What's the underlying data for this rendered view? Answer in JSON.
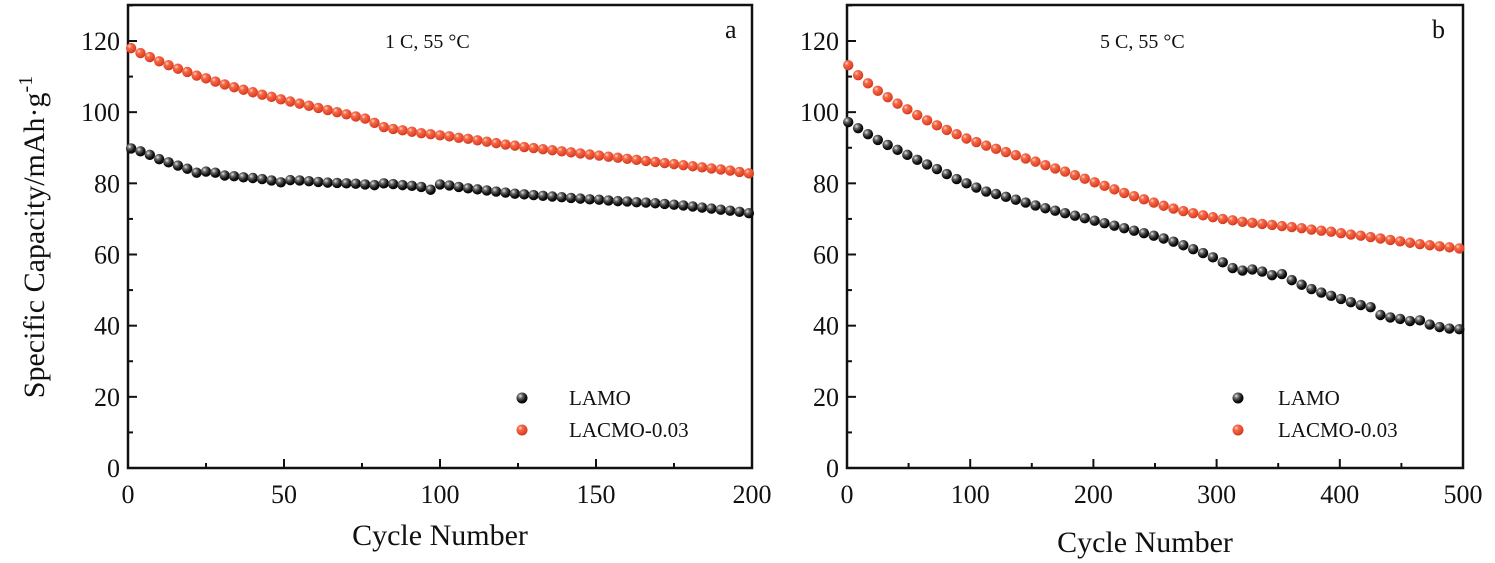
{
  "chart_data": [
    {
      "type": "scatter",
      "panel_label": "a",
      "annotation": "1 C, 55 °C",
      "title": "",
      "xlabel": "Cycle Number",
      "ylabel": "Specific Capacity/mAh·g⁻¹",
      "xlim": [
        0,
        200
      ],
      "ylim": [
        0,
        130
      ],
      "xticks": [
        0,
        50,
        100,
        150,
        200
      ],
      "xtick_labels": [
        "0",
        "50",
        "100",
        "150",
        "200"
      ],
      "yticks": [
        0,
        20,
        40,
        60,
        80,
        100,
        120
      ],
      "ytick_labels": [
        "0",
        "20",
        "40",
        "60",
        "80",
        "100",
        "120"
      ],
      "grid": false,
      "legend_position": "bottom-right",
      "series": [
        {
          "name": "LAMO",
          "color": "#111111",
          "x": [
            1,
            4,
            7,
            10,
            13,
            16,
            19,
            22,
            25,
            28,
            31,
            34,
            37,
            40,
            43,
            46,
            49,
            52,
            55,
            58,
            61,
            64,
            67,
            70,
            73,
            76,
            79,
            82,
            85,
            88,
            91,
            94,
            97,
            100,
            103,
            106,
            109,
            112,
            115,
            118,
            121,
            124,
            127,
            130,
            133,
            136,
            139,
            142,
            145,
            148,
            151,
            154,
            157,
            160,
            163,
            166,
            169,
            172,
            175,
            178,
            181,
            184,
            187,
            190,
            193,
            196,
            199
          ],
          "values": [
            89.8,
            89.0,
            88.0,
            86.8,
            85.9,
            85.0,
            84.1,
            83.0,
            83.3,
            83.0,
            82.2,
            82.0,
            81.7,
            81.5,
            81.2,
            80.8,
            80.3,
            80.9,
            80.8,
            80.6,
            80.4,
            80.2,
            80.1,
            80.0,
            79.9,
            79.7,
            79.5,
            80.0,
            79.8,
            79.5,
            79.3,
            79.0,
            78.2,
            79.7,
            79.4,
            79.0,
            78.6,
            78.3,
            78.0,
            77.7,
            77.4,
            77.1,
            76.9,
            76.7,
            76.5,
            76.3,
            76.1,
            75.9,
            75.7,
            75.5,
            75.4,
            75.2,
            75.0,
            74.9,
            74.7,
            74.6,
            74.4,
            74.2,
            74.0,
            73.8,
            73.5,
            73.2,
            72.9,
            72.6,
            72.3,
            72.0,
            71.6
          ]
        },
        {
          "name": "LACMO-0.03",
          "color": "#e8492a",
          "x": [
            1,
            4,
            7,
            10,
            13,
            16,
            19,
            22,
            25,
            28,
            31,
            34,
            37,
            40,
            43,
            46,
            49,
            52,
            55,
            58,
            61,
            64,
            67,
            70,
            73,
            76,
            79,
            82,
            85,
            88,
            91,
            94,
            97,
            100,
            103,
            106,
            109,
            112,
            115,
            118,
            121,
            124,
            127,
            130,
            133,
            136,
            139,
            142,
            145,
            148,
            151,
            154,
            157,
            160,
            163,
            166,
            169,
            172,
            175,
            178,
            181,
            184,
            187,
            190,
            193,
            196,
            199
          ],
          "values": [
            118.0,
            116.6,
            115.5,
            114.3,
            113.2,
            112.2,
            111.3,
            110.3,
            109.5,
            108.6,
            107.8,
            107.0,
            106.3,
            105.6,
            104.9,
            104.3,
            103.6,
            103.0,
            102.4,
            101.8,
            101.2,
            100.6,
            100.0,
            99.4,
            98.8,
            98.2,
            97.0,
            95.8,
            95.3,
            94.9,
            94.5,
            94.1,
            93.8,
            93.5,
            93.2,
            92.8,
            92.5,
            92.1,
            91.7,
            91.3,
            90.9,
            90.6,
            90.2,
            89.9,
            89.6,
            89.3,
            89.0,
            88.7,
            88.4,
            88.1,
            87.8,
            87.5,
            87.2,
            86.9,
            86.6,
            86.3,
            86.0,
            85.7,
            85.4,
            85.1,
            84.8,
            84.5,
            84.2,
            83.9,
            83.6,
            83.2,
            82.8
          ]
        }
      ]
    },
    {
      "type": "scatter",
      "panel_label": "b",
      "annotation": "5 C, 55 °C",
      "title": "",
      "xlabel": "Cycle Number",
      "ylabel": "",
      "xlim": [
        0,
        500
      ],
      "ylim": [
        0,
        130
      ],
      "xticks": [
        0,
        100,
        200,
        300,
        400,
        500
      ],
      "xtick_labels": [
        "0",
        "100",
        "200",
        "300",
        "400",
        "500"
      ],
      "yticks": [
        0,
        20,
        40,
        60,
        80,
        100,
        120
      ],
      "ytick_labels": [
        "0",
        "20",
        "40",
        "60",
        "80",
        "100",
        "120"
      ],
      "grid": false,
      "legend_position": "bottom-right",
      "series": [
        {
          "name": "LAMO",
          "color": "#111111",
          "x": [
            1,
            9,
            17,
            25,
            33,
            41,
            49,
            57,
            65,
            73,
            81,
            89,
            97,
            105,
            113,
            121,
            129,
            137,
            145,
            153,
            161,
            169,
            177,
            185,
            193,
            201,
            209,
            217,
            225,
            233,
            241,
            249,
            257,
            265,
            273,
            281,
            289,
            297,
            305,
            313,
            321,
            329,
            337,
            345,
            353,
            361,
            369,
            377,
            385,
            393,
            401,
            409,
            417,
            425,
            433,
            441,
            449,
            457,
            465,
            473,
            481,
            489,
            497
          ],
          "values": [
            97.2,
            95.5,
            93.8,
            92.2,
            90.8,
            89.4,
            88.0,
            86.6,
            85.3,
            84.0,
            82.6,
            81.2,
            80.0,
            78.8,
            77.7,
            77.0,
            76.2,
            75.4,
            74.6,
            73.8,
            73.0,
            72.3,
            71.6,
            70.9,
            70.2,
            69.5,
            68.8,
            68.1,
            67.4,
            66.7,
            66.0,
            65.3,
            64.5,
            63.6,
            62.6,
            61.5,
            60.4,
            59.2,
            57.8,
            56.2,
            55.5,
            55.8,
            55.2,
            54.2,
            54.5,
            52.8,
            51.5,
            50.3,
            49.3,
            48.4,
            47.5,
            46.6,
            45.8,
            45.2,
            43.0,
            42.3,
            41.9,
            41.3,
            41.5,
            40.3,
            39.6,
            39.2,
            39.0
          ]
        },
        {
          "name": "LACMO-0.03",
          "color": "#e8492a",
          "x": [
            1,
            9,
            17,
            25,
            33,
            41,
            49,
            57,
            65,
            73,
            81,
            89,
            97,
            105,
            113,
            121,
            129,
            137,
            145,
            153,
            161,
            169,
            177,
            185,
            193,
            201,
            209,
            217,
            225,
            233,
            241,
            249,
            257,
            265,
            273,
            281,
            289,
            297,
            305,
            313,
            321,
            329,
            337,
            345,
            353,
            361,
            369,
            377,
            385,
            393,
            401,
            409,
            417,
            425,
            433,
            441,
            449,
            457,
            465,
            473,
            481,
            489,
            497
          ],
          "values": [
            113.2,
            110.4,
            108.1,
            106.0,
            104.2,
            102.4,
            100.8,
            99.2,
            97.7,
            96.3,
            95.0,
            93.8,
            92.6,
            91.6,
            90.6,
            89.7,
            88.8,
            87.9,
            87.0,
            86.1,
            85.1,
            84.2,
            83.3,
            82.3,
            81.3,
            80.3,
            79.3,
            78.3,
            77.3,
            76.4,
            75.5,
            74.6,
            73.7,
            72.9,
            72.2,
            71.6,
            71.0,
            70.5,
            70.0,
            69.6,
            69.2,
            68.9,
            68.6,
            68.3,
            68.0,
            67.7,
            67.4,
            67.0,
            66.7,
            66.4,
            66.0,
            65.6,
            65.3,
            64.9,
            64.5,
            64.1,
            63.7,
            63.3,
            62.9,
            62.6,
            62.3,
            62.0,
            61.7
          ]
        }
      ]
    }
  ]
}
